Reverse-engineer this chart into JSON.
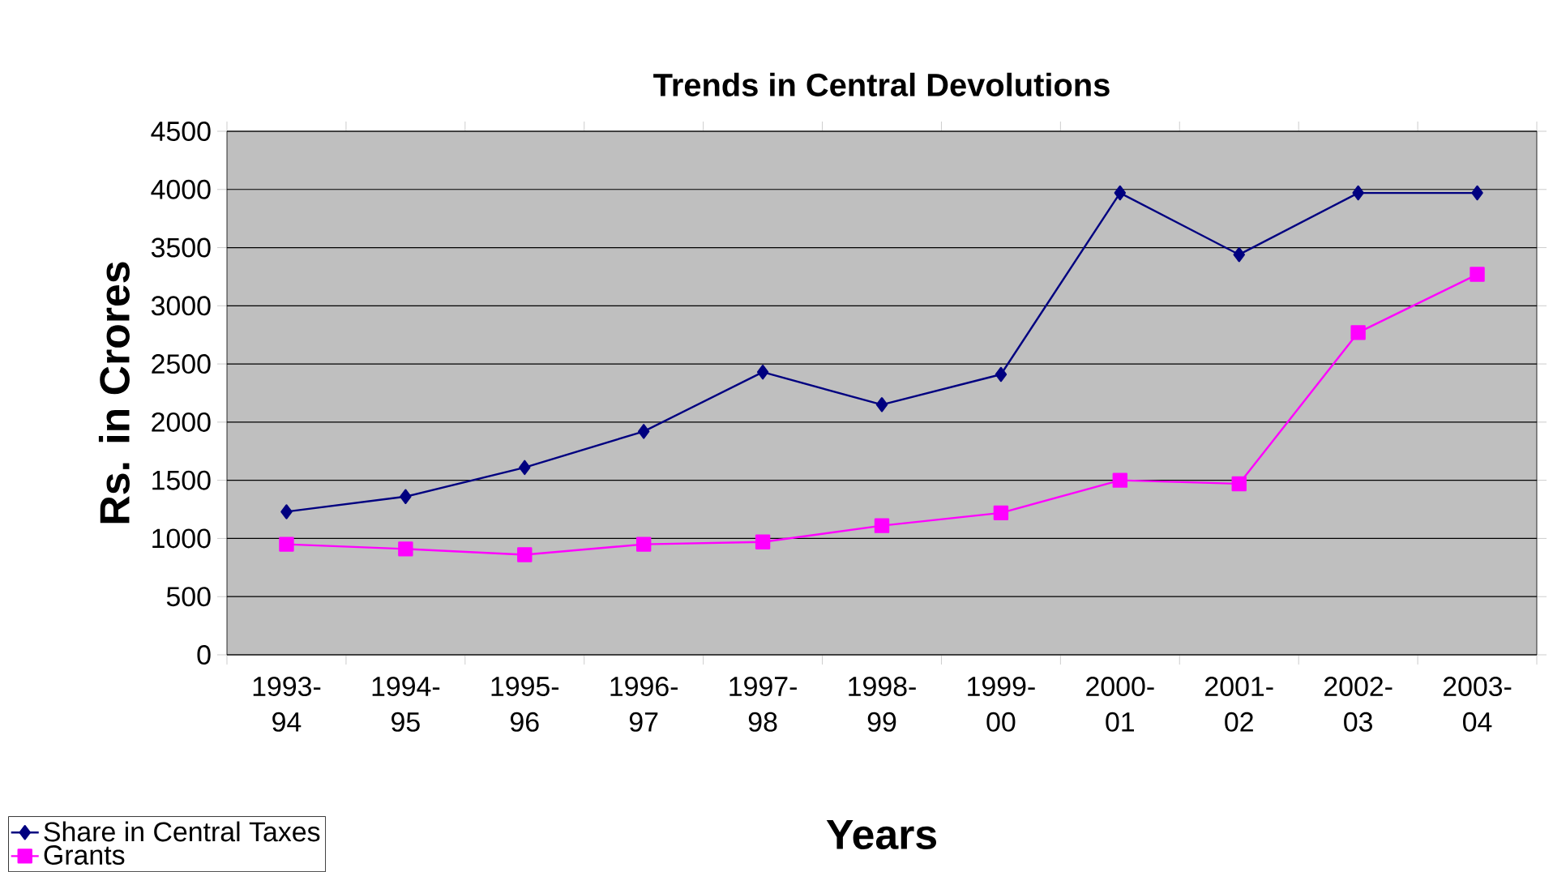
{
  "chart_data": {
    "type": "line",
    "title": "Trends in Central Devolutions",
    "xlabel": "Years",
    "ylabel": "Rs. in Crores",
    "categories": [
      "1993-94",
      "1994-95",
      "1995-96",
      "1996-97",
      "1997-98",
      "1998-99",
      "1999-00",
      "2000-01",
      "2001-02",
      "2002-03",
      "2003-04"
    ],
    "series": [
      {
        "name": "Share in Central Taxes",
        "color": "#000080",
        "marker": "diamond",
        "values": [
          1230,
          1360,
          1610,
          1920,
          2430,
          2150,
          2410,
          3970,
          3440,
          3970,
          3970
        ]
      },
      {
        "name": "Grants",
        "color": "#ff00ff",
        "marker": "square",
        "values": [
          950,
          910,
          860,
          950,
          970,
          1110,
          1220,
          1500,
          1470,
          2770,
          3270
        ]
      }
    ],
    "ylim": [
      0,
      4500
    ],
    "yticks": [
      0,
      500,
      1000,
      1500,
      2000,
      2500,
      3000,
      3500,
      4000,
      4500
    ],
    "grid": "y",
    "legend": "bottom left",
    "line_style": "solid"
  }
}
